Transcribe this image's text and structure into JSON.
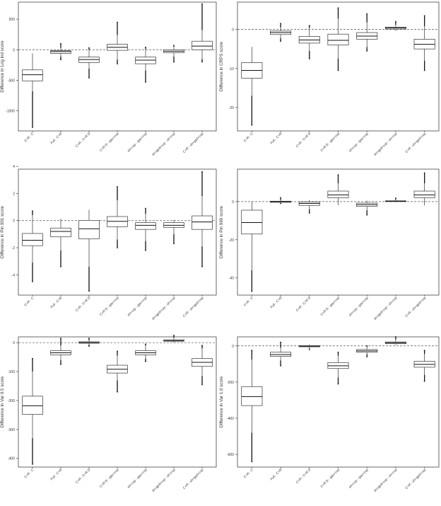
{
  "chart_data": [
    {
      "type": "boxplot",
      "ylabel": "Difference in Log ind score",
      "categories": [
        "C+R - C",
        "Full - C+R",
        "C+R - C+R D",
        "C+R D - gau+cop",
        "sh+cop - gau+cop",
        "sh+gpd+cop - sh+cop",
        "C+R - sh+gpd+cop"
      ],
      "yticks": [
        500,
        0,
        -500,
        -1000
      ],
      "ylim": [
        -1330,
        780
      ],
      "reference_line": 0,
      "boxes": [
        {
          "lo": -680,
          "q1": -510,
          "median": -410,
          "q3": -330,
          "hi": -60,
          "out_lo": -1270,
          "out_hi": null
        },
        {
          "lo": -110,
          "q1": -60,
          "median": -30,
          "q3": -15,
          "hi": 30,
          "out_lo": -160,
          "out_hi": 100
        },
        {
          "lo": -310,
          "q1": -210,
          "median": -160,
          "q3": -120,
          "hi": 0,
          "out_lo": -460,
          "out_hi": 30
        },
        {
          "lo": -160,
          "q1": -10,
          "median": 40,
          "q3": 90,
          "hi": 240,
          "out_lo": -230,
          "out_hi": 450
        },
        {
          "lo": -340,
          "q1": -230,
          "median": -170,
          "q3": -120,
          "hi": 10,
          "out_lo": -530,
          "out_hi": 40
        },
        {
          "lo": -110,
          "q1": -50,
          "median": -25,
          "q3": 0,
          "hi": 50,
          "out_lo": -200,
          "out_hi": 70
        },
        {
          "lo": -150,
          "q1": 0,
          "median": 60,
          "q3": 140,
          "hi": 320,
          "out_lo": -200,
          "out_hi": 750
        }
      ]
    },
    {
      "type": "boxplot",
      "ylabel": "Difference in CRPS score",
      "categories": [
        "C+R - C",
        "Full - C+R",
        "C+R - C+R D",
        "C+R D - gau+cop",
        "sh+cop - gau+cop",
        "sh+gpd+cop - sh+cop",
        "C+R - sh+gpd+cop"
      ],
      "yticks": [
        0,
        -10,
        -20
      ],
      "ylim": [
        -26,
        7
      ],
      "reference_line": 0,
      "boxes": [
        {
          "lo": -17,
          "q1": -12.5,
          "median": -10.5,
          "q3": -8.5,
          "hi": -4.5,
          "out_lo": -24.5,
          "out_hi": null
        },
        {
          "lo": -2.2,
          "q1": -1.3,
          "median": -0.8,
          "q3": -0.4,
          "hi": 0.5,
          "out_lo": -3,
          "out_hi": 1.5
        },
        {
          "lo": -5.5,
          "q1": -3.5,
          "median": -2.7,
          "q3": -1.8,
          "hi": 0.4,
          "out_lo": -7.5,
          "out_hi": 1
        },
        {
          "lo": -7.5,
          "q1": -4,
          "median": -2.8,
          "q3": -1.2,
          "hi": 2.8,
          "out_lo": -10.5,
          "out_hi": 5.5
        },
        {
          "lo": -4.5,
          "q1": -2.5,
          "median": -1.7,
          "q3": -0.8,
          "hi": 1.8,
          "out_lo": -5.5,
          "out_hi": 4
        },
        {
          "lo": -0.4,
          "q1": 0.1,
          "median": 0.4,
          "q3": 0.6,
          "hi": 1.2,
          "out_lo": null,
          "out_hi": 2
        },
        {
          "lo": -8,
          "q1": -5,
          "median": -3.8,
          "q3": -2.5,
          "hi": 0.8,
          "out_lo": -10.5,
          "out_hi": 3.5
        }
      ]
    },
    {
      "type": "boxplot",
      "ylabel": "Difference in Pin 001 score",
      "categories": [
        "C+R - C",
        "Full - C+R",
        "C+R - C+R D",
        "C+R D - gau+cop",
        "sh+cop - gau+cop",
        "sh+gpd+cop - sh+cop",
        "C+R - sh+gpd+cop"
      ],
      "yticks": [
        4,
        2,
        0,
        -2,
        -4
      ],
      "ylim": [
        -5.5,
        3.8
      ],
      "reference_line": 0,
      "boxes": [
        {
          "lo": -3.1,
          "q1": -1.85,
          "median": -1.45,
          "q3": -0.95,
          "hi": 0.4,
          "out_lo": -4.5,
          "out_hi": 0.7
        },
        {
          "lo": -2.2,
          "q1": -1.2,
          "median": -0.8,
          "q3": -0.55,
          "hi": 0.15,
          "out_lo": -3.4,
          "out_hi": null
        },
        {
          "lo": -3.4,
          "q1": -1.35,
          "median": -0.6,
          "q3": 0.02,
          "hi": 0.8,
          "out_lo": -5.2,
          "out_hi": null
        },
        {
          "lo": -1.4,
          "q1": -0.45,
          "median": -0.05,
          "q3": 0.3,
          "hi": 1.5,
          "out_lo": -2,
          "out_hi": 2.5
        },
        {
          "lo": -1.5,
          "q1": -0.65,
          "median": -0.35,
          "q3": -0.15,
          "hi": 0.5,
          "out_lo": -2.2,
          "out_hi": 0.9
        },
        {
          "lo": -1,
          "q1": -0.5,
          "median": -0.35,
          "q3": -0.15,
          "hi": 0.05,
          "out_lo": -1.7,
          "out_hi": null
        },
        {
          "lo": -1.9,
          "q1": -0.65,
          "median": -0.1,
          "q3": 0.35,
          "hi": 1.8,
          "out_lo": -3.4,
          "out_hi": 3.6
        }
      ]
    },
    {
      "type": "boxplot",
      "ylabel": "Difference in Pin 999 score",
      "categories": [
        "C+R - C",
        "Full - C+R",
        "C+R - C+R D",
        "C+R D - gau+cop",
        "sh+cop - gau+cop",
        "sh+gpd+cop - sh+cop",
        "C+R - sh+gpd+cop"
      ],
      "yticks": [
        0,
        -20,
        -40
      ],
      "ylim": [
        -49,
        17
      ],
      "reference_line": 0,
      "boxes": [
        {
          "lo": -36,
          "q1": -17,
          "median": -11,
          "q3": -4.5,
          "hi": 0,
          "out_lo": -47,
          "out_hi": null
        },
        {
          "lo": -0.8,
          "q1": -0.4,
          "median": 0,
          "q3": 0.2,
          "hi": 0.8,
          "out_lo": -1,
          "out_hi": 2
        },
        {
          "lo": -4,
          "q1": -2,
          "median": -1,
          "q3": -0.2,
          "hi": 0.8,
          "out_lo": -6,
          "out_hi": null
        },
        {
          "lo": -2,
          "q1": 2,
          "median": 3.5,
          "q3": 5.5,
          "hi": 9.5,
          "out_lo": null,
          "out_hi": 14
        },
        {
          "lo": -4.5,
          "q1": -2.5,
          "median": -1.6,
          "q3": -0.8,
          "hi": 0.5,
          "out_lo": -7,
          "out_hi": null
        },
        {
          "lo": -0.2,
          "q1": 0,
          "median": 0.2,
          "q3": 0.4,
          "hi": 1,
          "out_lo": null,
          "out_hi": 1.8
        },
        {
          "lo": -2,
          "q1": 2,
          "median": 3.5,
          "q3": 5.5,
          "hi": 9.5,
          "out_lo": null,
          "out_hi": 15
        }
      ]
    },
    {
      "type": "boxplot",
      "ylabel": "Difference in Var 0.5 score",
      "categories": [
        "C+R - C",
        "Full - C+R",
        "C+R - C+R D",
        "C+R D - gau+cop",
        "sh+cop - gau+cop",
        "sh+gpd+cop - sh+cop",
        "C+R - sh+gpd+cop"
      ],
      "yticks": [
        0,
        -100,
        -200,
        -300,
        -400
      ],
      "ylim": [
        -430,
        20
      ],
      "reference_line": 0,
      "boxes": [
        {
          "lo": -330,
          "q1": -248,
          "median": -218,
          "q3": -185,
          "hi": -100,
          "out_lo": -420,
          "out_hi": -55
        },
        {
          "lo": -60,
          "q1": -42,
          "median": -35,
          "q3": -28,
          "hi": -10,
          "out_lo": -75,
          "out_hi": 15
        },
        {
          "lo": -7,
          "q1": -2,
          "median": 0,
          "q3": 3,
          "hi": 8,
          "out_lo": -12,
          "out_hi": 15
        },
        {
          "lo": -130,
          "q1": -105,
          "median": -92,
          "q3": -78,
          "hi": -45,
          "out_lo": -170,
          "out_hi": -30
        },
        {
          "lo": -55,
          "q1": -42,
          "median": -35,
          "q3": -28,
          "hi": -10,
          "out_lo": -65,
          "out_hi": -5
        },
        {
          "lo": 0,
          "q1": 5,
          "median": 7,
          "q3": 10,
          "hi": 17,
          "out_lo": null,
          "out_hi": 25
        },
        {
          "lo": -115,
          "q1": -82,
          "median": -68,
          "q3": -55,
          "hi": -20,
          "out_lo": -145,
          "out_hi": -10
        }
      ]
    },
    {
      "type": "boxplot",
      "ylabel": "Difference in Var 1.0 score",
      "categories": [
        "C+R - C",
        "Full - C+R",
        "C+R - C+R D",
        "C+R D - gau+cop",
        "sh+cop - gau+cop",
        "sh+gpd+cop - sh+cop",
        "C+R - sh+gpd+cop"
      ],
      "yticks": [
        0,
        -200,
        -400,
        -600
      ],
      "ylim": [
        -670,
        50
      ],
      "reference_line": 0,
      "boxes": [
        {
          "lo": -480,
          "q1": -330,
          "median": -280,
          "q3": -225,
          "hi": -75,
          "out_lo": -640,
          "out_hi": -25
        },
        {
          "lo": -80,
          "q1": -58,
          "median": -48,
          "q3": -35,
          "hi": -10,
          "out_lo": -110,
          "out_hi": 20
        },
        {
          "lo": -15,
          "q1": -5,
          "median": -2,
          "q3": 2,
          "hi": 8,
          "out_lo": -20,
          "out_hi": null
        },
        {
          "lo": -175,
          "q1": -125,
          "median": -110,
          "q3": -92,
          "hi": -55,
          "out_lo": -210,
          "out_hi": -35
        },
        {
          "lo": -45,
          "q1": -35,
          "median": -28,
          "q3": -20,
          "hi": -5,
          "out_lo": -60,
          "out_hi": 0
        },
        {
          "lo": 5,
          "q1": 12,
          "median": 17,
          "q3": 22,
          "hi": 35,
          "out_lo": null,
          "out_hi": 50
        },
        {
          "lo": -160,
          "q1": -118,
          "median": -102,
          "q3": -85,
          "hi": -45,
          "out_lo": -195,
          "out_hi": -25
        }
      ]
    }
  ]
}
